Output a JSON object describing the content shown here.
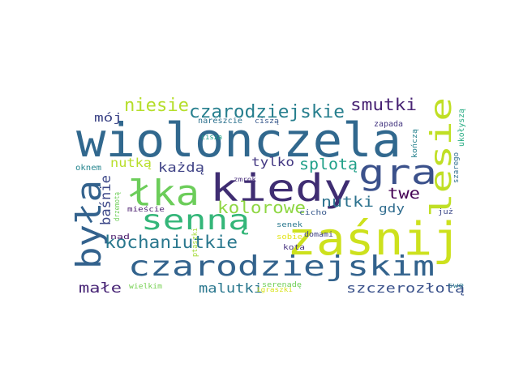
{
  "words": [
    {
      "text": "wiolonczela",
      "color": "#31688e"
    },
    {
      "text": "zaśnij",
      "color": "#cde11d"
    },
    {
      "text": "czarodziejskim",
      "color": "#33638d"
    },
    {
      "text": "łka",
      "color": "#6ccd5a"
    },
    {
      "text": "kiedy",
      "color": "#3f2d72"
    },
    {
      "text": "gra",
      "color": "#3b518b"
    },
    {
      "text": "była",
      "color": "#33628d"
    },
    {
      "text": "senną",
      "color": "#34b679"
    },
    {
      "text": "lesie",
      "color": "#c0df25"
    },
    {
      "text": "czarodziejskie",
      "color": "#277f8e"
    },
    {
      "text": "kochaniutkie",
      "color": "#2a788e"
    },
    {
      "text": "niesie",
      "color": "#b5de2b"
    },
    {
      "text": "smutki",
      "color": "#482374"
    },
    {
      "text": "kolorowe",
      "color": "#8fd744"
    },
    {
      "text": "splotą",
      "color": "#1f9f88"
    },
    {
      "text": "nutki",
      "color": "#2c728e"
    },
    {
      "text": "twe",
      "color": "#440154"
    },
    {
      "text": "małe",
      "color": "#482576"
    },
    {
      "text": "malutki",
      "color": "#2a778e"
    },
    {
      "text": "szczerozłotą",
      "color": "#3b528b"
    },
    {
      "text": "każdą",
      "color": "#414487"
    },
    {
      "text": "baśnie",
      "color": "#3e4989"
    },
    {
      "text": "nutką",
      "color": "#b8de29"
    },
    {
      "text": "tylko",
      "color": "#443983"
    },
    {
      "text": "mój",
      "color": "#3f4788"
    },
    {
      "text": "gdy",
      "color": "#2f6c8e"
    },
    {
      "text": "nareszcie",
      "color": "#2d718e"
    },
    {
      "text": "ciszą",
      "color": "#38588c"
    },
    {
      "text": "cisza",
      "color": "#1fa088"
    },
    {
      "text": "zapada",
      "color": "#453781"
    },
    {
      "text": "kończą",
      "color": "#26828e"
    },
    {
      "text": "ukołyszą",
      "color": "#25ab82"
    },
    {
      "text": "oknem",
      "color": "#25858e"
    },
    {
      "text": "drzemotą",
      "color": "#6ece58"
    },
    {
      "text": "zmrok",
      "color": "#472d7b"
    },
    {
      "text": "ptaszki",
      "color": "#a2da37"
    },
    {
      "text": "szarego",
      "color": "#2e6e8e"
    },
    {
      "text": "mieście",
      "color": "#481b6d"
    },
    {
      "text": "cicho",
      "color": "#38598c"
    },
    {
      "text": "już",
      "color": "#3e4a89"
    },
    {
      "text": "senek",
      "color": "#2a788e"
    },
    {
      "text": "nad",
      "color": "#48186a"
    },
    {
      "text": "sobie",
      "color": "#e2e418"
    },
    {
      "text": "kota",
      "color": "#46327e"
    },
    {
      "text": "domami",
      "color": "#414287"
    },
    {
      "text": "serenadę",
      "color": "#70cf57"
    },
    {
      "text": "igraszki",
      "color": "#d8e219"
    },
    {
      "text": "wielkim",
      "color": "#77d153"
    },
    {
      "text": "swe",
      "color": "#2a788e"
    }
  ]
}
